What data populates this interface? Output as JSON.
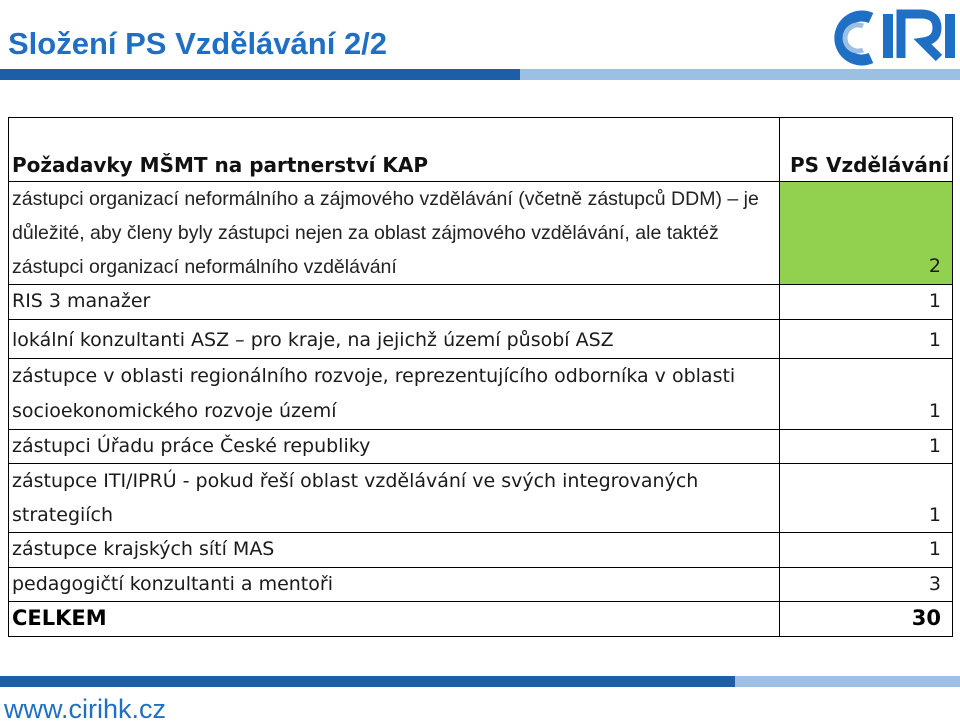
{
  "page": {
    "title": "Složení PS Vzdělávání 2/2",
    "logo_text": "CIRI",
    "footer_url": "www.cirihk.cz"
  },
  "table": {
    "header": {
      "label": "Požadavky MŠMT na partnerství KAP",
      "value_label": "PS Vzdělávání"
    },
    "rows": [
      {
        "label": "zástupci organizací neformálního a zájmového vzdělávání (včetně zástupců DDM) – je důležité, aby členy byly zástupci nejen za oblast zájmového vzdělávání, ale taktéž zástupci organizací neformálního vzdělávání",
        "value": "2",
        "green": true
      },
      {
        "label": "RIS 3 manažer",
        "value": "1",
        "green": false
      },
      {
        "label": "lokální konzultanti ASZ – pro kraje, na jejichž území působí ASZ",
        "value": "1",
        "green": false
      },
      {
        "label": "zástupce v oblasti regionálního rozvoje, reprezentujícího odborníka v oblasti socioekonomického rozvoje území",
        "value": "1",
        "green": false
      },
      {
        "label": "zástupci Úřadu práce České republiky",
        "value": "1",
        "green": false
      },
      {
        "label": "zástupce ITI/IPRÚ - pokud řeší oblast vzdělávání ve svých integrovaných strategiích",
        "value": "1",
        "green": false
      },
      {
        "label": "zástupce krajských sítí MAS",
        "value": "1",
        "green": false
      },
      {
        "label": "pedagogičtí konzultanti a mentoři",
        "value": "3",
        "green": false
      }
    ],
    "total": {
      "label": "CELKEM",
      "value": "30"
    }
  },
  "colors": {
    "title": "#1f6fc5",
    "accent_dark": "#1c5fa8",
    "accent_light": "#9bc0e4",
    "highlight": "#92d050"
  }
}
